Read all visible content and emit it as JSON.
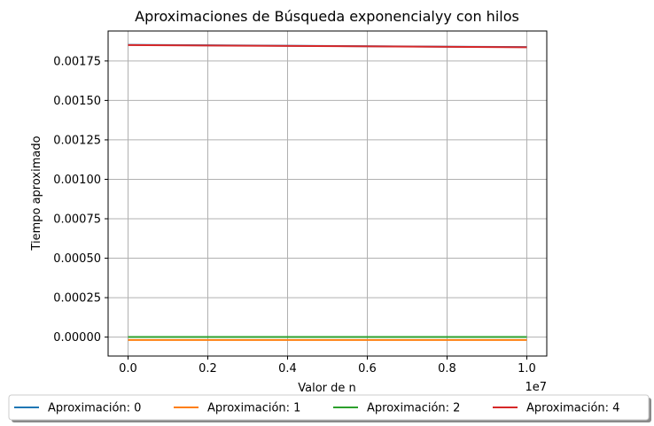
{
  "chart_data": {
    "type": "line",
    "title": "Aproximaciones de Búsqueda exponencialyy con hilos",
    "xlabel": "Valor de n",
    "ylabel": "Tiempo aproximado",
    "x_offset_label": "1e7",
    "xlim": [
      -0.05,
      1.05
    ],
    "ylim": [
      -0.00012,
      0.00194
    ],
    "x_ticks": [
      0.0,
      0.2,
      0.4,
      0.6,
      0.8,
      1.0
    ],
    "x_tick_labels": [
      "0.0",
      "0.2",
      "0.4",
      "0.6",
      "0.8",
      "1.0"
    ],
    "y_ticks": [
      0.0,
      0.00025,
      0.0005,
      0.00075,
      0.001,
      0.00125,
      0.0015,
      0.00175
    ],
    "y_tick_labels": [
      "0.00000",
      "0.00025",
      "0.00050",
      "0.00075",
      "0.00100",
      "0.00125",
      "0.00150",
      "0.00175"
    ],
    "grid": true,
    "legend_position": "bottom-outside",
    "series": [
      {
        "name": "Aproximación: 0",
        "color": "#1f77b4",
        "x": [
          0.0,
          1.0
        ],
        "y": [
          0.001852,
          0.001838
        ]
      },
      {
        "name": "Aproximación: 1",
        "color": "#ff7f0e",
        "x": [
          0.0,
          1.0
        ],
        "y": [
          -1.8e-05,
          -1.8e-05
        ]
      },
      {
        "name": "Aproximación: 2",
        "color": "#2ca02c",
        "x": [
          0.0,
          1.0
        ],
        "y": [
          1e-06,
          1e-06
        ]
      },
      {
        "name": "Aproximación: 4",
        "color": "#d62728",
        "x": [
          0.0,
          1.0
        ],
        "y": [
          0.001851,
          0.001837
        ]
      }
    ]
  }
}
